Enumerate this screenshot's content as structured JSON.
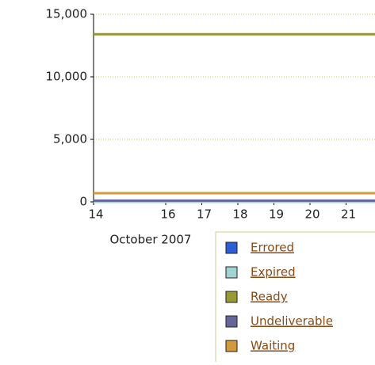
{
  "chart_data": {
    "type": "line",
    "x_label": "October 2007",
    "x": [
      14,
      22
    ],
    "xlim": [
      14,
      22
    ],
    "xticks": [
      14,
      16,
      17,
      18,
      19,
      20,
      21
    ],
    "ylim": [
      0,
      15000
    ],
    "yticks": [
      0,
      {
        "value": 5000,
        "label": "5,000"
      },
      {
        "value": 10000,
        "label": "10,000"
      },
      {
        "value": 15000,
        "label": "15,000"
      }
    ],
    "grid": true,
    "series": [
      {
        "name": "Errored",
        "color": "#2b5fd9",
        "values": [
          0,
          0
        ]
      },
      {
        "name": "Expired",
        "color": "#a0d4d0",
        "values": [
          0,
          0
        ]
      },
      {
        "name": "Ready",
        "color": "#999933",
        "values": [
          13400,
          13400
        ]
      },
      {
        "name": "Undeliverable",
        "color": "#66669a",
        "values": [
          100,
          100
        ]
      },
      {
        "name": "Waiting",
        "color": "#d29a3a",
        "values": [
          700,
          700
        ]
      }
    ]
  }
}
